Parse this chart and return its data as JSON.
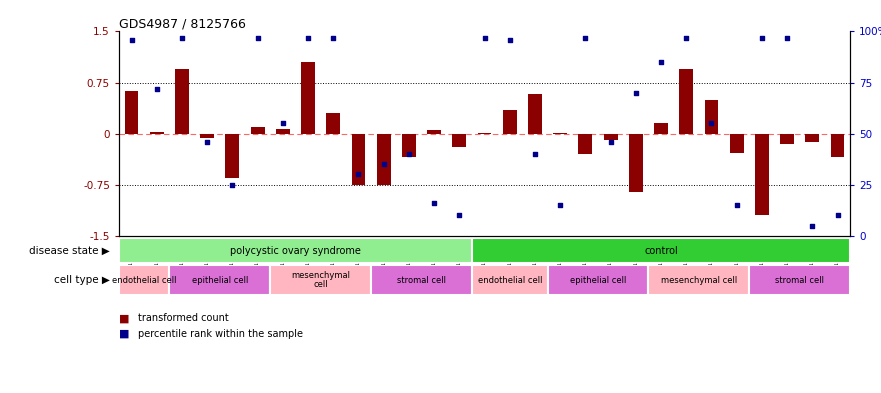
{
  "title": "GDS4987 / 8125766",
  "samples": [
    "GSM1174425",
    "GSM1174429",
    "GSM1174436",
    "GSM1174427",
    "GSM1174430",
    "GSM1174432",
    "GSM1174435",
    "GSM1174424",
    "GSM1174428",
    "GSM1174433",
    "GSM1174423",
    "GSM1174426",
    "GSM1174431",
    "GSM1174434",
    "GSM1174409",
    "GSM1174414",
    "GSM1174418",
    "GSM1174421",
    "GSM1174412",
    "GSM1174416",
    "GSM1174419",
    "GSM1174408",
    "GSM1174413",
    "GSM1174417",
    "GSM1174420",
    "GSM1174410",
    "GSM1174411",
    "GSM1174415",
    "GSM1174422"
  ],
  "bar_values": [
    0.62,
    0.03,
    0.95,
    -0.07,
    -0.65,
    0.1,
    0.07,
    1.05,
    0.3,
    -0.75,
    -0.75,
    -0.35,
    0.06,
    -0.2,
    0.01,
    0.35,
    0.58,
    0.01,
    -0.3,
    -0.1,
    -0.85,
    0.15,
    0.95,
    0.5,
    -0.28,
    -1.2,
    -0.15,
    -0.12,
    -0.35
  ],
  "percentile_values": [
    96,
    72,
    97,
    46,
    25,
    97,
    55,
    97,
    97,
    30,
    35,
    40,
    16,
    10,
    97,
    96,
    40,
    15,
    97,
    46,
    70,
    85,
    97,
    55,
    15,
    97,
    97,
    5,
    10
  ],
  "ylim_left": [
    -1.5,
    1.5
  ],
  "ylim_right": [
    0,
    100
  ],
  "yticks_left": [
    -1.5,
    -0.75,
    0.0,
    0.75,
    1.5
  ],
  "ytick_labels_left": [
    "-1.5",
    "-0.75",
    "0",
    "0.75",
    "1.5"
  ],
  "yticks_right": [
    0,
    25,
    50,
    75,
    100
  ],
  "ytick_labels_right": [
    "0",
    "25",
    "50",
    "75",
    "100%"
  ],
  "bar_color": "#8B0000",
  "dot_color": "#00008B",
  "zero_line_color": "#FF6666",
  "disease_groups": [
    {
      "label": "polycystic ovary syndrome",
      "start": 0,
      "end": 14,
      "color": "#90EE90"
    },
    {
      "label": "control",
      "start": 14,
      "end": 29,
      "color": "#32CD32"
    }
  ],
  "cell_type_groups": [
    {
      "label": "endothelial cell",
      "start": 0,
      "end": 2,
      "color": "#FFB6C1"
    },
    {
      "label": "epithelial cell",
      "start": 2,
      "end": 6,
      "color": "#DA70D6"
    },
    {
      "label": "mesenchymal\ncell",
      "start": 6,
      "end": 10,
      "color": "#FFB6C1"
    },
    {
      "label": "stromal cell",
      "start": 10,
      "end": 14,
      "color": "#DA70D6"
    },
    {
      "label": "endothelial cell",
      "start": 14,
      "end": 17,
      "color": "#FFB6C1"
    },
    {
      "label": "epithelial cell",
      "start": 17,
      "end": 21,
      "color": "#DA70D6"
    },
    {
      "label": "mesenchymal cell",
      "start": 21,
      "end": 25,
      "color": "#FFB6C1"
    },
    {
      "label": "stromal cell",
      "start": 25,
      "end": 29,
      "color": "#DA70D6"
    }
  ],
  "left_ylabel_color": "#8B0000",
  "right_ylabel_color": "#0000CD",
  "legend_items": [
    {
      "label": "transformed count",
      "color": "#8B0000"
    },
    {
      "label": "percentile rank within the sample",
      "color": "#00008B"
    }
  ]
}
